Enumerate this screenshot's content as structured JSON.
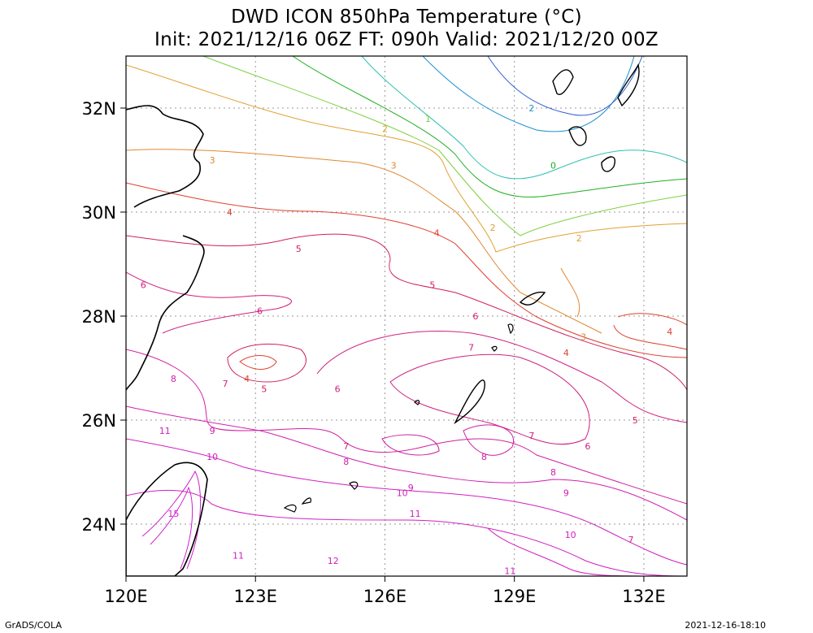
{
  "title": {
    "line1": "DWD ICON 850hPa Temperature (°C)",
    "line2": "Init: 2021/12/16 06Z  FT: 090h  Valid: 2021/12/20 00Z"
  },
  "map": {
    "lon_range": [
      120,
      133
    ],
    "lat_range": [
      23,
      33
    ],
    "lon_ticks": [
      {
        "value": 120,
        "label": "120E"
      },
      {
        "value": 123,
        "label": "123E"
      },
      {
        "value": 126,
        "label": "126E"
      },
      {
        "value": 129,
        "label": "129E"
      },
      {
        "value": 132,
        "label": "132E"
      }
    ],
    "lat_ticks": [
      {
        "value": 24,
        "label": "24N"
      },
      {
        "value": 26,
        "label": "26N"
      },
      {
        "value": 28,
        "label": "28N"
      },
      {
        "value": 30,
        "label": "30N"
      },
      {
        "value": 32,
        "label": "32N"
      }
    ],
    "grid": true,
    "contour_labels": [
      {
        "text": "2",
        "lon": 129.4,
        "lat": 32.0,
        "color": "#1e90d0"
      },
      {
        "text": "1",
        "lon": 127.0,
        "lat": 31.8,
        "color": "#7ed040"
      },
      {
        "text": "2",
        "lon": 126.0,
        "lat": 31.6,
        "color": "#e0a030"
      },
      {
        "text": "3",
        "lon": 122.0,
        "lat": 31.0,
        "color": "#e08830"
      },
      {
        "text": "3",
        "lon": 126.2,
        "lat": 30.9,
        "color": "#e08830"
      },
      {
        "text": "0",
        "lon": 129.9,
        "lat": 30.9,
        "color": "#20b020"
      },
      {
        "text": "4",
        "lon": 122.4,
        "lat": 30.0,
        "color": "#e04030"
      },
      {
        "text": "2",
        "lon": 128.5,
        "lat": 29.7,
        "color": "#e0a030"
      },
      {
        "text": "2",
        "lon": 130.5,
        "lat": 29.5,
        "color": "#e0a030"
      },
      {
        "text": "4",
        "lon": 127.2,
        "lat": 29.6,
        "color": "#e04030"
      },
      {
        "text": "5",
        "lon": 124.0,
        "lat": 29.3,
        "color": "#d02060"
      },
      {
        "text": "6",
        "lon": 120.4,
        "lat": 28.6,
        "color": "#d02080"
      },
      {
        "text": "5",
        "lon": 127.1,
        "lat": 28.6,
        "color": "#d02060"
      },
      {
        "text": "6",
        "lon": 123.1,
        "lat": 28.1,
        "color": "#d02080"
      },
      {
        "text": "6",
        "lon": 128.1,
        "lat": 28.0,
        "color": "#d02080"
      },
      {
        "text": "3",
        "lon": 130.6,
        "lat": 27.6,
        "color": "#e08830"
      },
      {
        "text": "4",
        "lon": 132.6,
        "lat": 27.7,
        "color": "#e04030"
      },
      {
        "text": "7",
        "lon": 128.0,
        "lat": 27.4,
        "color": "#d02080"
      },
      {
        "text": "4",
        "lon": 130.2,
        "lat": 27.3,
        "color": "#e04030"
      },
      {
        "text": "4",
        "lon": 122.8,
        "lat": 26.8,
        "color": "#e04030"
      },
      {
        "text": "5",
        "lon": 123.2,
        "lat": 26.6,
        "color": "#d02060"
      },
      {
        "text": "7",
        "lon": 122.3,
        "lat": 26.7,
        "color": "#d02080"
      },
      {
        "text": "8",
        "lon": 121.1,
        "lat": 26.8,
        "color": "#d020a0"
      },
      {
        "text": "6",
        "lon": 124.9,
        "lat": 26.6,
        "color": "#d02080"
      },
      {
        "text": "5",
        "lon": 131.8,
        "lat": 26.0,
        "color": "#d02060"
      },
      {
        "text": "11",
        "lon": 120.9,
        "lat": 25.8,
        "color": "#d020c0"
      },
      {
        "text": "9",
        "lon": 122.0,
        "lat": 25.8,
        "color": "#d020b0"
      },
      {
        "text": "7",
        "lon": 129.4,
        "lat": 25.7,
        "color": "#d02080"
      },
      {
        "text": "7",
        "lon": 125.1,
        "lat": 25.5,
        "color": "#d02080"
      },
      {
        "text": "6",
        "lon": 130.7,
        "lat": 25.5,
        "color": "#d02080"
      },
      {
        "text": "10",
        "lon": 122.0,
        "lat": 25.3,
        "color": "#d020c0"
      },
      {
        "text": "8",
        "lon": 125.1,
        "lat": 25.2,
        "color": "#d020a0"
      },
      {
        "text": "8",
        "lon": 128.3,
        "lat": 25.3,
        "color": "#d020a0"
      },
      {
        "text": "8",
        "lon": 129.9,
        "lat": 25.0,
        "color": "#d020a0"
      },
      {
        "text": "9",
        "lon": 126.6,
        "lat": 24.7,
        "color": "#d020b0"
      },
      {
        "text": "10",
        "lon": 126.4,
        "lat": 24.6,
        "color": "#d020c0"
      },
      {
        "text": "9",
        "lon": 130.2,
        "lat": 24.6,
        "color": "#d020b0"
      },
      {
        "text": "15",
        "lon": 121.1,
        "lat": 24.2,
        "color": "#d020d0"
      },
      {
        "text": "11",
        "lon": 126.7,
        "lat": 24.2,
        "color": "#d020c0"
      },
      {
        "text": "10",
        "lon": 130.3,
        "lat": 23.8,
        "color": "#d020c0"
      },
      {
        "text": "7",
        "lon": 131.7,
        "lat": 23.7,
        "color": "#d02080"
      },
      {
        "text": "11",
        "lon": 122.6,
        "lat": 23.4,
        "color": "#d020c0"
      },
      {
        "text": "12",
        "lon": 124.8,
        "lat": 23.3,
        "color": "#d020c0"
      },
      {
        "text": "11",
        "lon": 128.9,
        "lat": 23.1,
        "color": "#d020c0"
      }
    ]
  },
  "footer": {
    "left": "GrADS/COLA",
    "right": "2021-12-16-18:10"
  }
}
